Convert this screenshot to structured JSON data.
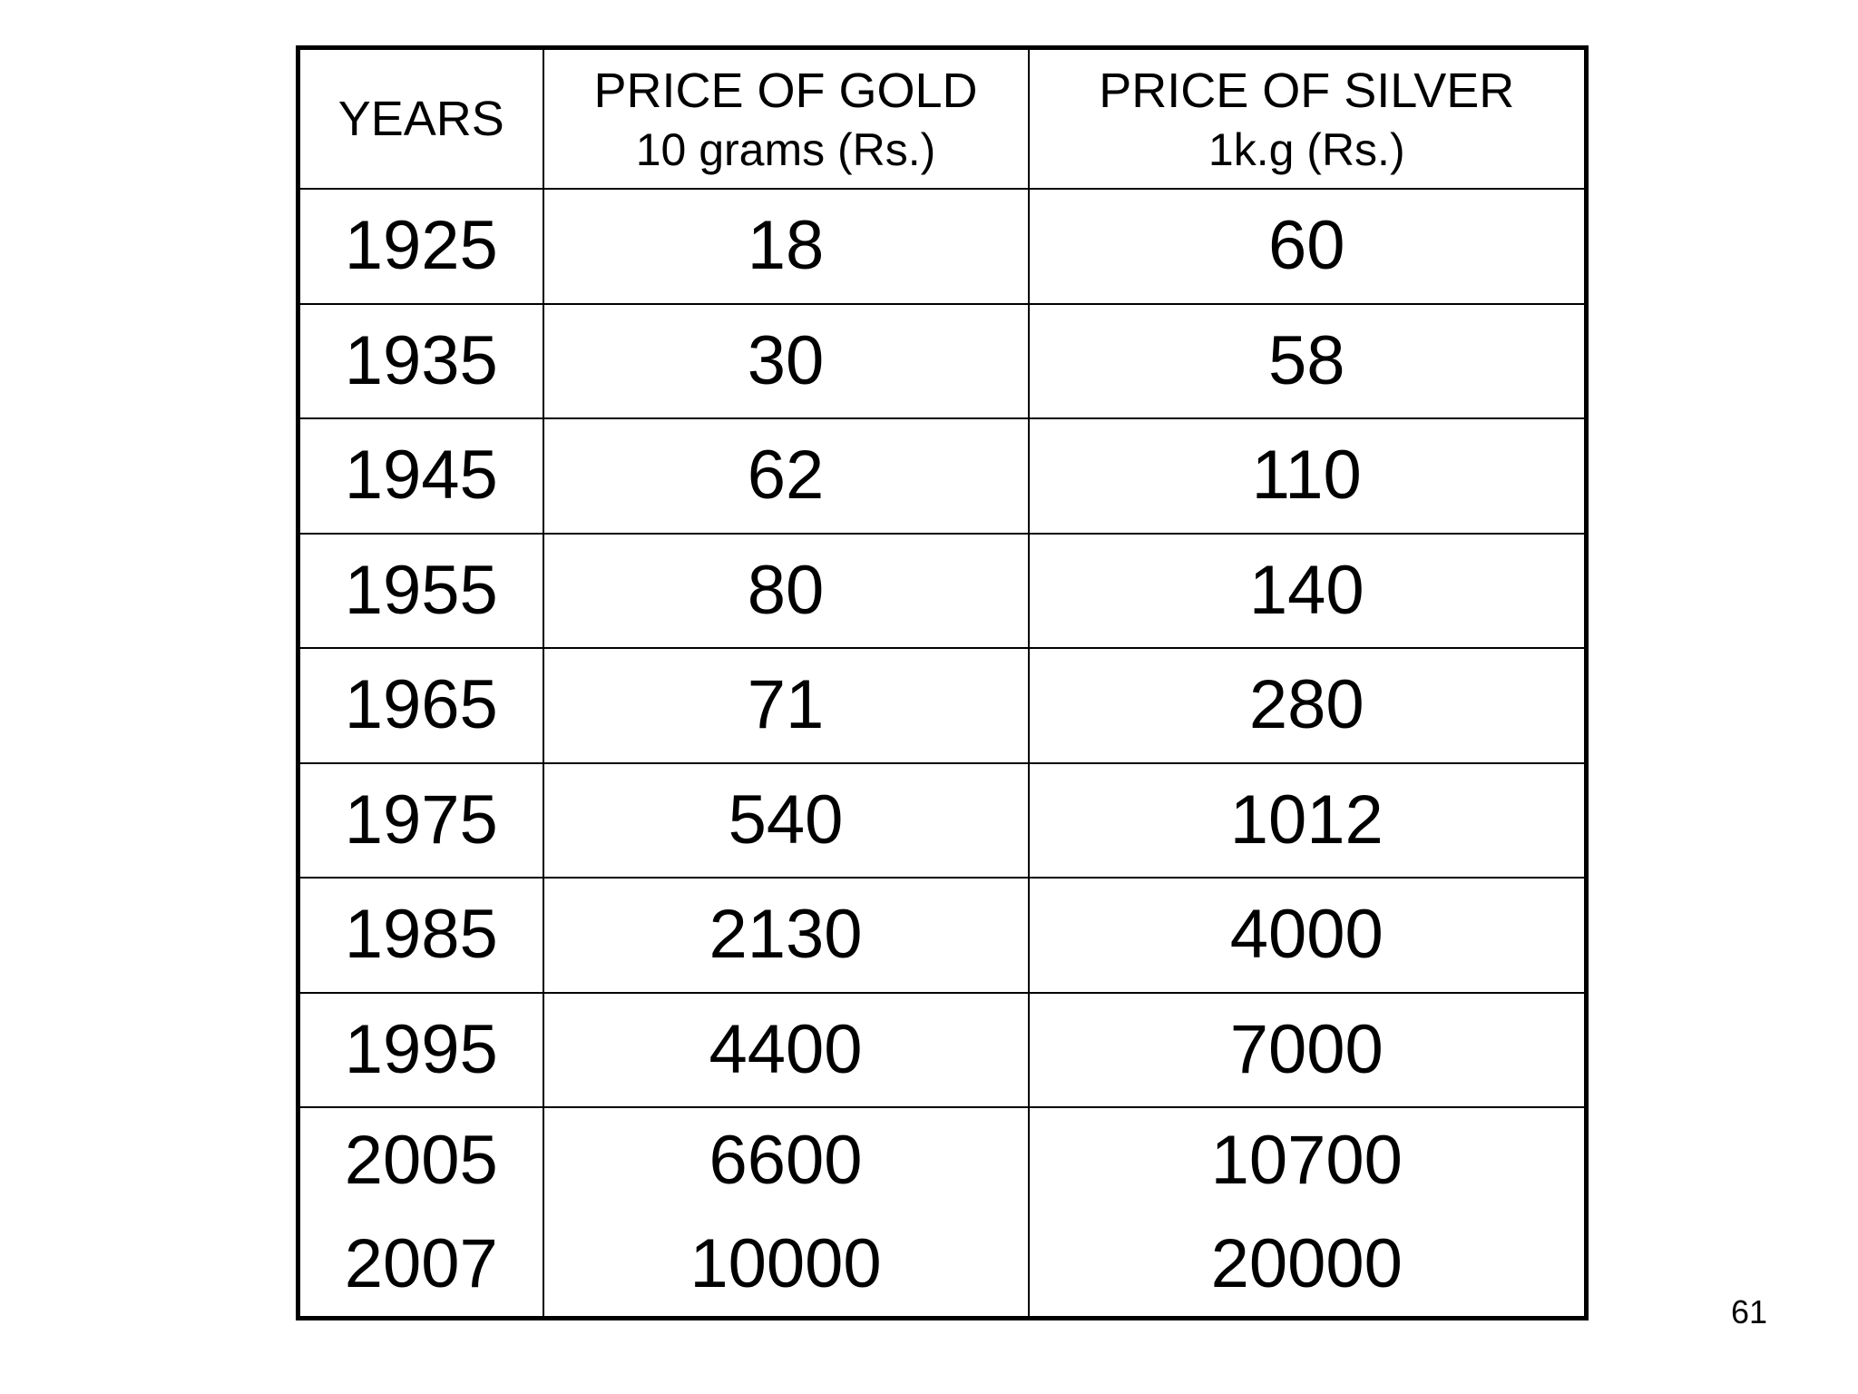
{
  "table": {
    "headers": {
      "years": "YEARS",
      "gold_title": "PRICE OF GOLD",
      "gold_unit": "10 grams (Rs.)",
      "silver_title": "PRICE OF SILVER",
      "silver_unit": "1k.g (Rs.)"
    },
    "rows": [
      {
        "year": "1925",
        "gold": "18",
        "silver": "60"
      },
      {
        "year": "1935",
        "gold": "30",
        "silver": "58"
      },
      {
        "year": "1945",
        "gold": "62",
        "silver": "110"
      },
      {
        "year": "1955",
        "gold": "80",
        "silver": "140"
      },
      {
        "year": "1965",
        "gold": "71",
        "silver": "280"
      },
      {
        "year": "1975",
        "gold": "540",
        "silver": "1012"
      },
      {
        "year": "1985",
        "gold": "2130",
        "silver": "4000"
      },
      {
        "year": "1995",
        "gold": "4400",
        "silver": "7000"
      },
      {
        "year": "2005",
        "gold": "6600",
        "silver": "10700"
      },
      {
        "year": "2007",
        "gold": "10000",
        "silver": "20000"
      }
    ]
  },
  "page_number": "61"
}
